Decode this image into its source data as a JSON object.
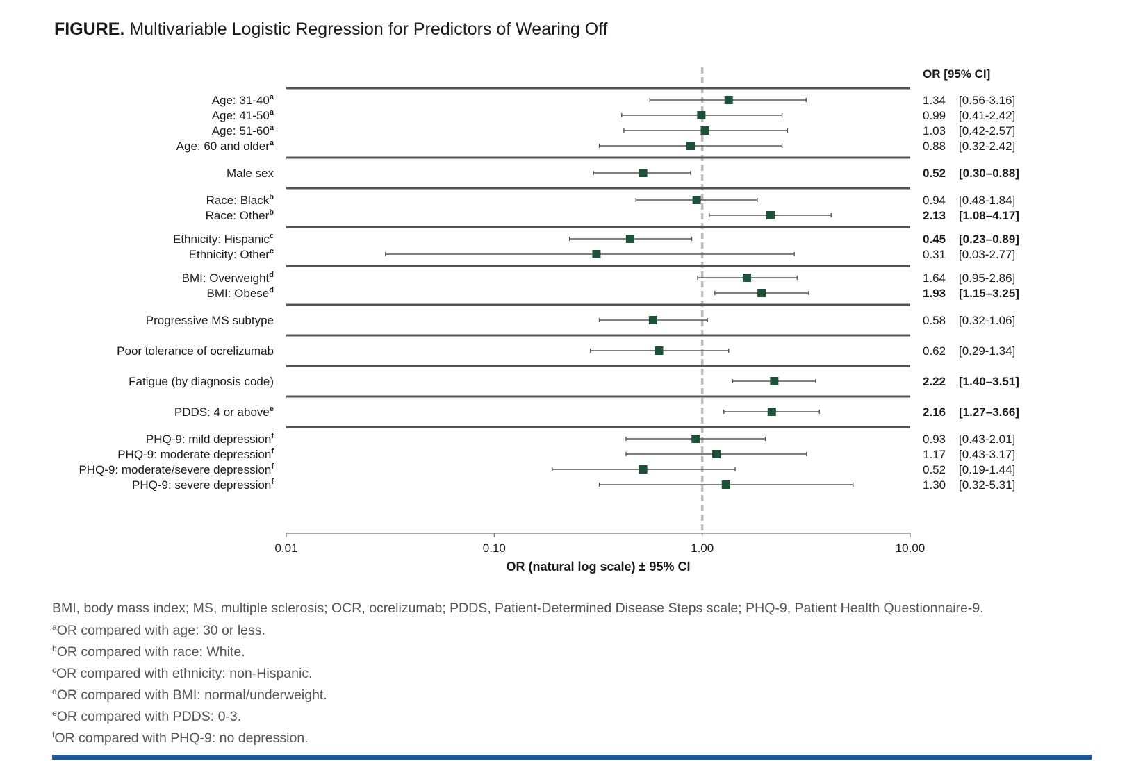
{
  "title": {
    "lead": "FIGURE.",
    "text": "Multivariable Logistic Regression for Predictors of Wearing Off"
  },
  "colors": {
    "marker": "#1e5238",
    "reference_line": "#b8b8b8",
    "separator": "#555555",
    "bar": "#1b5a9e"
  },
  "chart_data": {
    "type": "forest",
    "ci_header": "OR [95% CI]",
    "xlabel": "OR (natural log scale) ± 95% CI",
    "xscale": "log",
    "xlim": [
      0.01,
      10
    ],
    "xticks": [
      0.01,
      0.1,
      1,
      10
    ],
    "xtick_labels": [
      "0.01",
      "0.10",
      "1.00",
      "10.00"
    ],
    "reference": 1,
    "groups": [
      {
        "rows": [
          {
            "label": "Age: 31-40",
            "sup": "a",
            "or": 1.34,
            "lo": 0.56,
            "hi": 3.16,
            "or_text": "1.34",
            "ci_text": "[0.56-3.16]",
            "bold": false
          },
          {
            "label": "Age: 41-50",
            "sup": "a",
            "or": 0.99,
            "lo": 0.41,
            "hi": 2.42,
            "or_text": "0.99",
            "ci_text": "[0.41-2.42]",
            "bold": false
          },
          {
            "label": "Age: 51-60",
            "sup": "a",
            "or": 1.03,
            "lo": 0.42,
            "hi": 2.57,
            "or_text": "1.03",
            "ci_text": "[0.42-2.57]",
            "bold": false
          },
          {
            "label": "Age: 60 and older",
            "sup": "a",
            "or": 0.88,
            "lo": 0.32,
            "hi": 2.42,
            "or_text": "0.88",
            "ci_text": "[0.32-2.42]",
            "bold": false
          }
        ]
      },
      {
        "rows": [
          {
            "label": "Male sex",
            "sup": "",
            "or": 0.52,
            "lo": 0.3,
            "hi": 0.88,
            "or_text": "0.52",
            "ci_text": "[0.30–0.88]",
            "bold": true
          }
        ]
      },
      {
        "rows": [
          {
            "label": "Race: Black",
            "sup": "b",
            "or": 0.94,
            "lo": 0.48,
            "hi": 1.84,
            "or_text": "0.94",
            "ci_text": "[0.48-1.84]",
            "bold": false
          },
          {
            "label": "Race: Other",
            "sup": "b",
            "or": 2.13,
            "lo": 1.08,
            "hi": 4.17,
            "or_text": "2.13",
            "ci_text": "[1.08–4.17]",
            "bold": true
          }
        ]
      },
      {
        "rows": [
          {
            "label": "Ethnicity: Hispanic",
            "sup": "c",
            "or": 0.45,
            "lo": 0.23,
            "hi": 0.89,
            "or_text": "0.45",
            "ci_text": "[0.23–0.89]",
            "bold": true
          },
          {
            "label": "Ethnicity: Other",
            "sup": "c",
            "or": 0.31,
            "lo": 0.03,
            "hi": 2.77,
            "or_text": "0.31",
            "ci_text": "[0.03-2.77]",
            "bold": false
          }
        ]
      },
      {
        "rows": [
          {
            "label": "BMI: Overweight",
            "sup": "d",
            "or": 1.64,
            "lo": 0.95,
            "hi": 2.86,
            "or_text": "1.64",
            "ci_text": "[0.95-2.86]",
            "bold": false
          },
          {
            "label": "BMI: Obese",
            "sup": "d",
            "or": 1.93,
            "lo": 1.15,
            "hi": 3.25,
            "or_text": "1.93",
            "ci_text": "[1.15–3.25]",
            "bold": true
          }
        ]
      },
      {
        "rows": [
          {
            "label": "Progressive MS subtype",
            "sup": "",
            "or": 0.58,
            "lo": 0.32,
            "hi": 1.06,
            "or_text": "0.58",
            "ci_text": "[0.32-1.06]",
            "bold": false
          }
        ]
      },
      {
        "rows": [
          {
            "label": "Poor tolerance of ocrelizumab",
            "sup": "",
            "or": 0.62,
            "lo": 0.29,
            "hi": 1.34,
            "or_text": "0.62",
            "ci_text": "[0.29-1.34]",
            "bold": false
          }
        ]
      },
      {
        "rows": [
          {
            "label": "Fatigue (by diagnosis code)",
            "sup": "",
            "or": 2.22,
            "lo": 1.4,
            "hi": 3.51,
            "or_text": "2.22",
            "ci_text": "[1.40–3.51]",
            "bold": true
          }
        ]
      },
      {
        "rows": [
          {
            "label": "PDDS: 4 or above",
            "sup": "e",
            "or": 2.16,
            "lo": 1.27,
            "hi": 3.66,
            "or_text": "2.16",
            "ci_text": "[1.27–3.66]",
            "bold": true
          }
        ]
      },
      {
        "rows": [
          {
            "label": "PHQ-9: mild depression",
            "sup": "f",
            "or": 0.93,
            "lo": 0.43,
            "hi": 2.01,
            "or_text": "0.93",
            "ci_text": "[0.43-2.01]",
            "bold": false
          },
          {
            "label": "PHQ-9: moderate depression",
            "sup": "f",
            "or": 1.17,
            "lo": 0.43,
            "hi": 3.17,
            "or_text": "1.17",
            "ci_text": "[0.43-3.17]",
            "bold": false
          },
          {
            "label": "PHQ-9: moderate/severe depression",
            "sup": "f",
            "or": 0.52,
            "lo": 0.19,
            "hi": 1.44,
            "or_text": "0.52",
            "ci_text": "[0.19-1.44]",
            "bold": false
          },
          {
            "label": "PHQ-9: severe depression",
            "sup": "f",
            "or": 1.3,
            "lo": 0.32,
            "hi": 5.31,
            "or_text": "1.30",
            "ci_text": "[0.32-5.31]",
            "bold": false
          }
        ]
      }
    ]
  },
  "footnotes": [
    {
      "sup": "",
      "text": "BMI, body mass index; MS, multiple sclerosis; OCR, ocrelizumab; PDDS, Patient-Determined Disease Steps scale; PHQ-9, Patient Health Questionnaire-9."
    },
    {
      "sup": "a",
      "text": "OR compared with age: 30 or less."
    },
    {
      "sup": "b",
      "text": "OR compared with race: White."
    },
    {
      "sup": "c",
      "text": "OR compared with ethnicity: non-Hispanic."
    },
    {
      "sup": "d",
      "text": "OR compared with BMI: normal/underweight."
    },
    {
      "sup": "e",
      "text": "OR compared with PDDS: 0-3."
    },
    {
      "sup": "f",
      "text": "OR compared with PHQ-9: no depression."
    }
  ]
}
